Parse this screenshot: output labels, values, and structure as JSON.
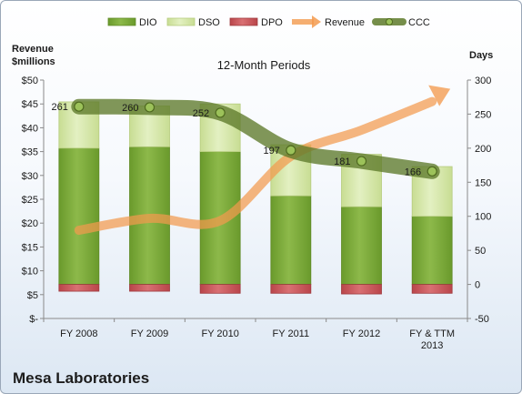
{
  "footer_title": "Mesa Laboratories",
  "chart_data": {
    "type": "bar",
    "title": "12-Month Periods",
    "ylabel_left": "Revenue $millions",
    "ylabel_right": "Days",
    "categories": [
      [
        "FY 2008"
      ],
      [
        "FY 2009"
      ],
      [
        "FY 2010"
      ],
      [
        "FY 2011"
      ],
      [
        "FY 2012"
      ],
      [
        "FY & TTM",
        "2013"
      ]
    ],
    "left_axis": {
      "min": 0,
      "max": 50,
      "step": 5,
      "tick_labels": [
        "$-",
        "$5",
        "$10",
        "$15",
        "$20",
        "$25",
        "$30",
        "$35",
        "$40",
        "$45",
        "$50"
      ]
    },
    "right_axis": {
      "min": -50,
      "max": 300,
      "step": 50,
      "tick_labels": [
        "-50",
        "0",
        "50",
        "100",
        "150",
        "200",
        "250",
        "300"
      ]
    },
    "series": [
      {
        "name": "DIO",
        "kind": "stacked-bar",
        "axis": "right",
        "color": "#7ea83a",
        "values": [
          200,
          202,
          195,
          130,
          114,
          100
        ]
      },
      {
        "name": "DSO",
        "kind": "stacked-bar",
        "axis": "right",
        "color": "#d4e7a6",
        "values": [
          68,
          60,
          70,
          75,
          77,
          73
        ]
      },
      {
        "name": "DPO",
        "kind": "bar-negative",
        "axis": "right",
        "color": "#c9585a",
        "values": [
          -10,
          -10,
          -13,
          -13,
          -14,
          -13
        ]
      },
      {
        "name": "Revenue",
        "kind": "line",
        "axis": "left",
        "color": "#f39a4e",
        "values": [
          18.5,
          21,
          20.5,
          34,
          39.5,
          45.5
        ]
      },
      {
        "name": "CCC",
        "kind": "line",
        "axis": "right",
        "color": "#5e7a2a",
        "values": [
          261,
          260,
          252,
          197,
          181,
          166
        ],
        "labels": [
          "261",
          "260",
          "252",
          "197",
          "181",
          "166"
        ]
      }
    ],
    "legend_position": "top",
    "grid": false
  }
}
